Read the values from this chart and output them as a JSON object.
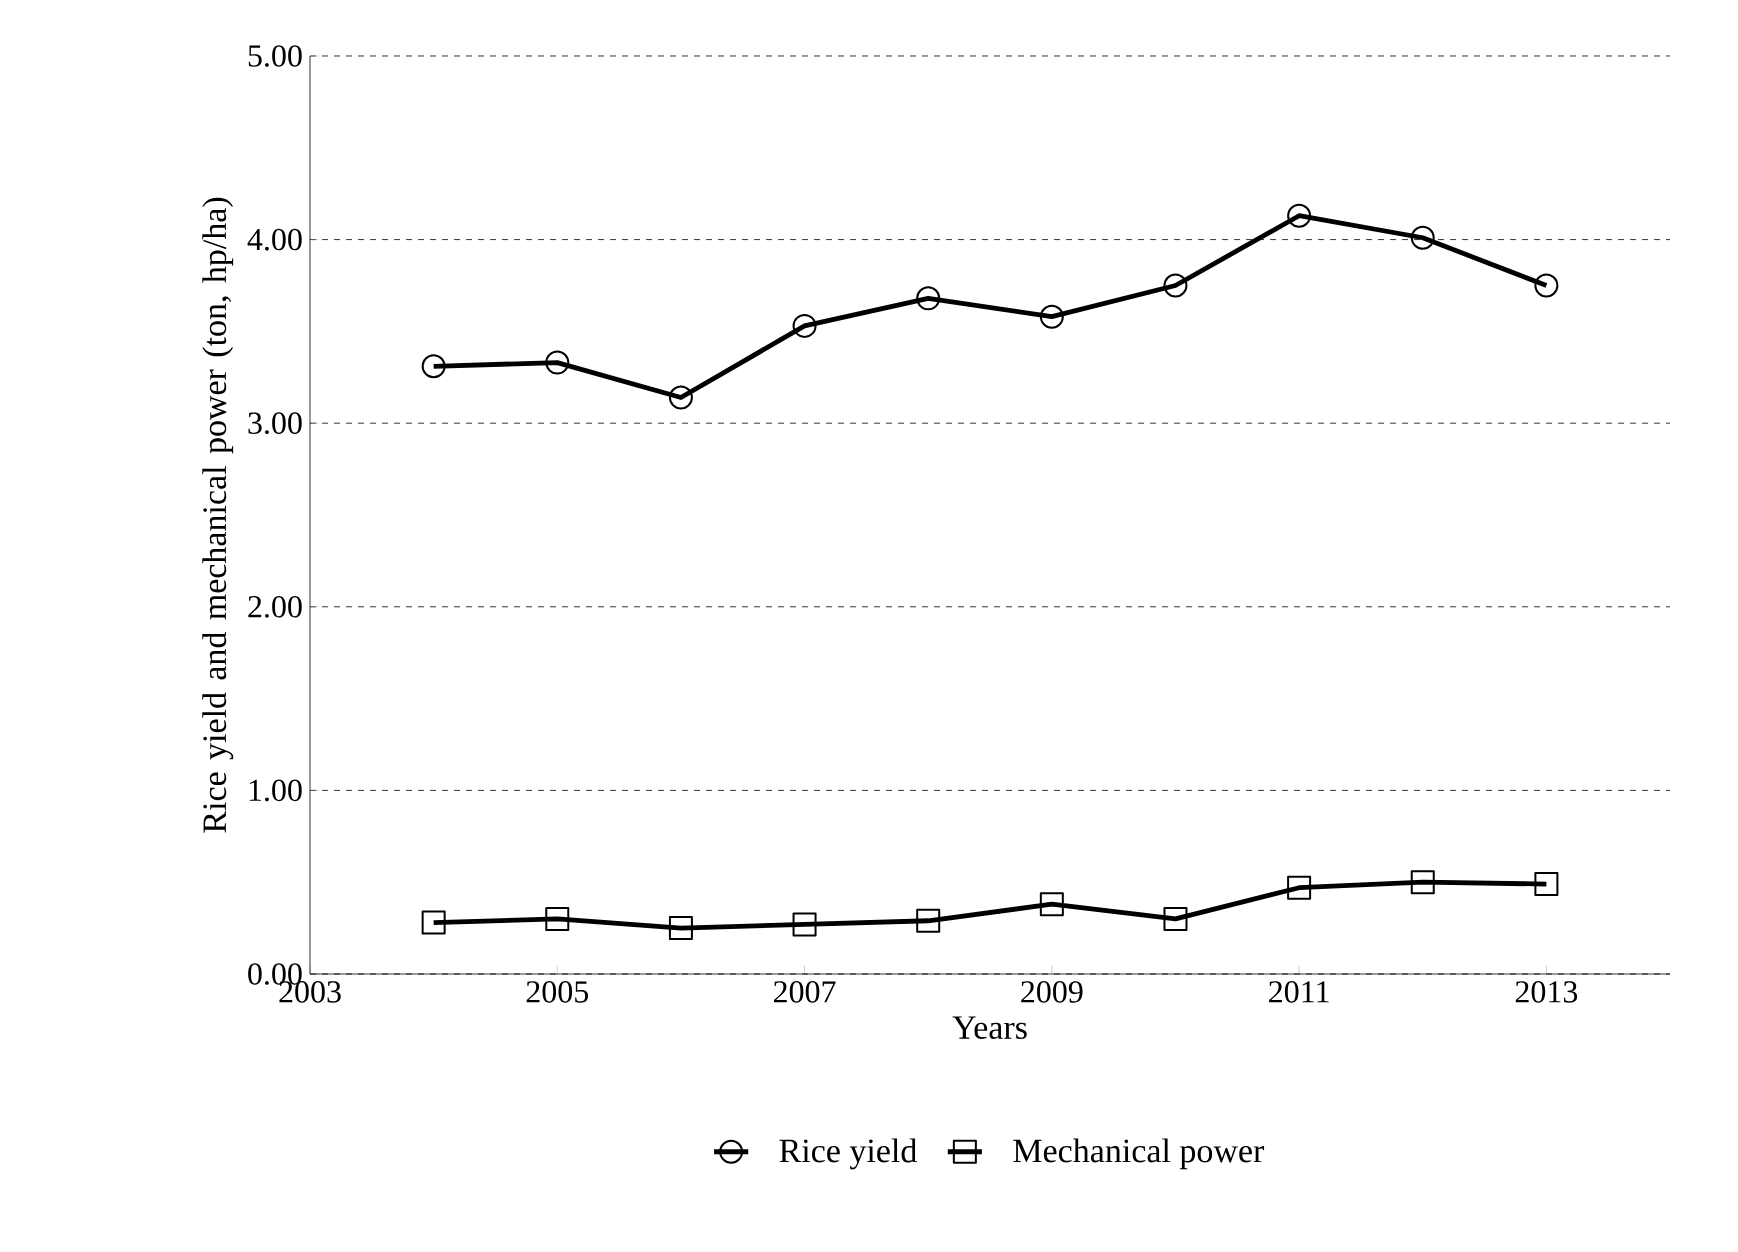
{
  "chart_data": {
    "type": "line",
    "xlabel": "Years",
    "ylabel": "Rice yield and mechanical power (ton, hp/ha)",
    "x": [
      2004,
      2005,
      2006,
      2007,
      2008,
      2009,
      2010,
      2011,
      2012,
      2013
    ],
    "series": [
      {
        "name": "Rice yield",
        "color": "#000000",
        "marker": "circle",
        "values": [
          3.31,
          3.33,
          3.14,
          3.53,
          3.68,
          3.58,
          3.75,
          4.13,
          4.01,
          3.75
        ]
      },
      {
        "name": "Mechanical power",
        "color": "#000000",
        "marker": "square",
        "values": [
          0.28,
          0.3,
          0.25,
          0.27,
          0.29,
          0.38,
          0.3,
          0.47,
          0.5,
          0.49
        ]
      }
    ],
    "xlim": [
      2003,
      2014
    ],
    "xticks": [
      2003,
      2005,
      2007,
      2009,
      2011,
      2013
    ],
    "ylim": [
      0,
      5
    ],
    "yticks": [
      {
        "value": 0,
        "label": "0.00"
      },
      {
        "value": 1,
        "label": "1.00"
      },
      {
        "value": 2,
        "label": "2.00"
      },
      {
        "value": 3,
        "label": "3.00"
      },
      {
        "value": 4,
        "label": "4.00"
      },
      {
        "value": 5,
        "label": "5.00"
      }
    ],
    "grid": "y",
    "legend": "bottom",
    "line_style": "solid"
  }
}
